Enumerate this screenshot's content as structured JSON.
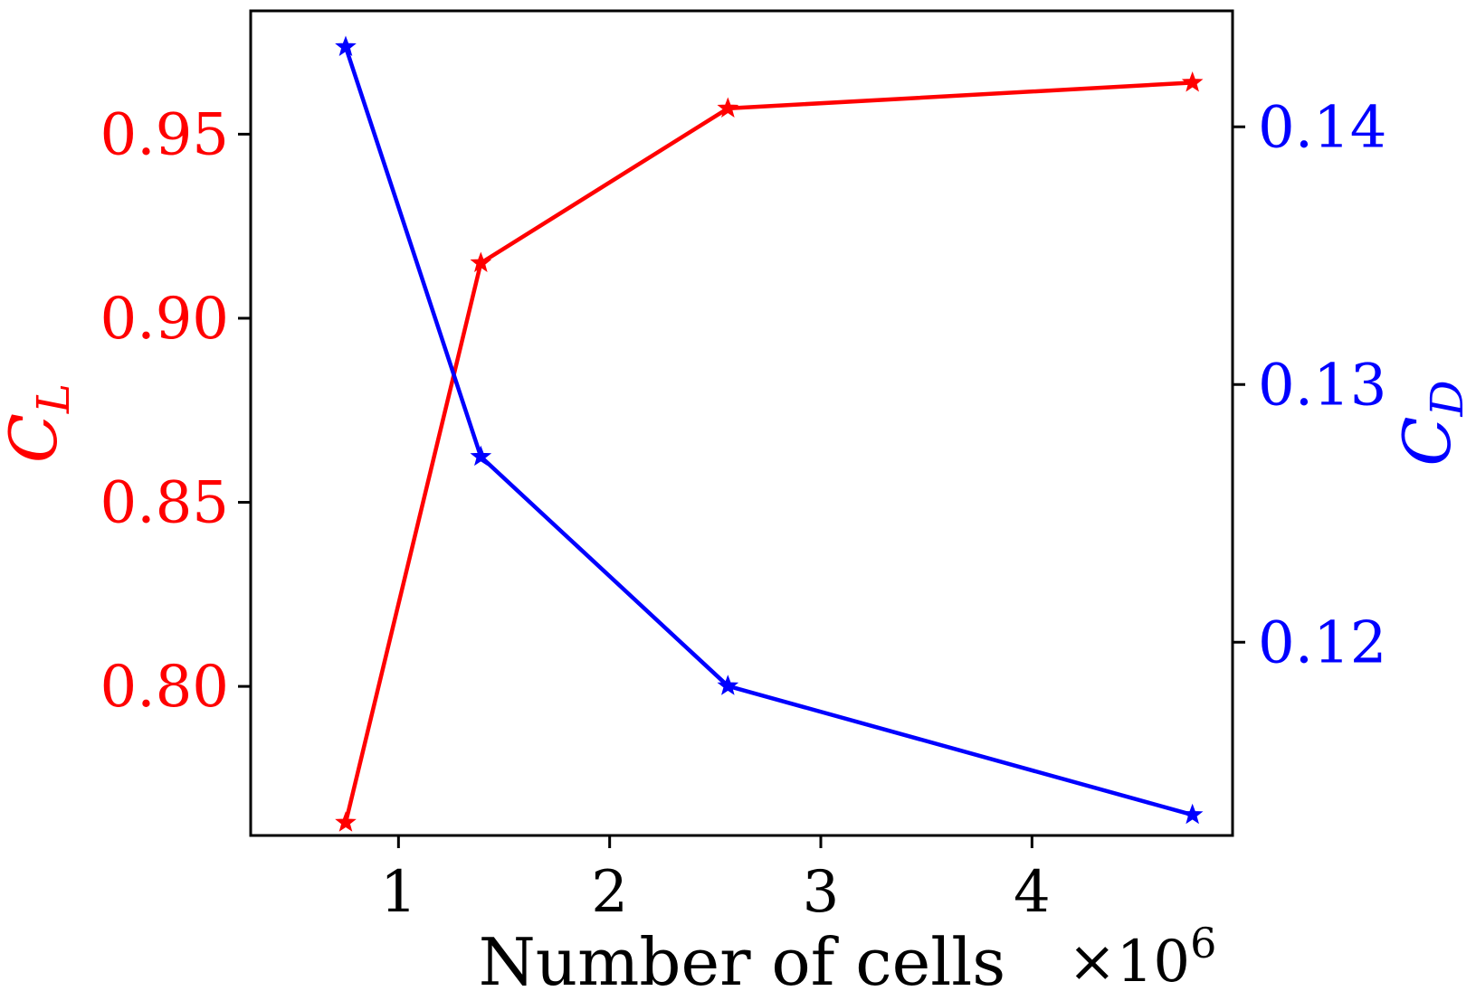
{
  "chart_data": {
    "type": "line",
    "title": "",
    "xlabel": "Number of cells",
    "x_multiplier": {
      "base": "×10",
      "exponent": "6"
    },
    "x": [
      0.75,
      1.39,
      2.56,
      4.76
    ],
    "xlim": [
      0.3,
      4.95
    ],
    "xticks": [
      1,
      2,
      3,
      4
    ],
    "xtick_labels": [
      "1",
      "2",
      "3",
      "4"
    ],
    "grid": false,
    "legend": "none",
    "series": [
      {
        "name": "C_L",
        "axis": "left",
        "color": "#ff0000",
        "marker": "star",
        "values": [
          0.763,
          0.915,
          0.957,
          0.964
        ],
        "ylabel_main": "C",
        "ylabel_sub": "L",
        "ylim": [
          0.7595,
          0.9835
        ],
        "yticks": [
          0.8,
          0.85,
          0.9,
          0.95
        ],
        "ytick_labels": [
          "0.80",
          "0.85",
          "0.90",
          "0.95"
        ]
      },
      {
        "name": "C_D",
        "axis": "right",
        "color": "#0000ff",
        "marker": "star",
        "values": [
          0.1431,
          0.1272,
          0.1183,
          0.1133
        ],
        "ylabel_main": "C",
        "ylabel_sub": "D",
        "ylim": [
          0.1125,
          0.1445
        ],
        "yticks": [
          0.12,
          0.13,
          0.14
        ],
        "ytick_labels": [
          "0.12",
          "0.13",
          "0.14"
        ]
      }
    ]
  }
}
